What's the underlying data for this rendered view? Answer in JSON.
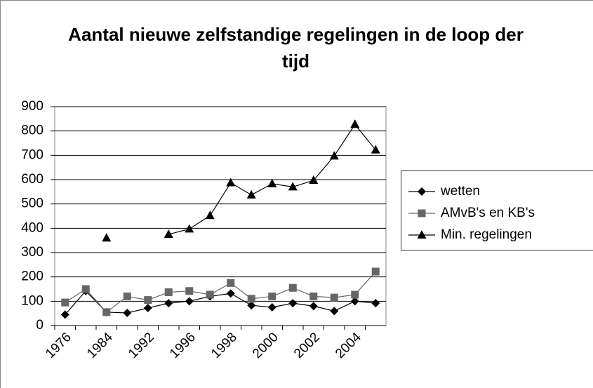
{
  "chart_data": {
    "type": "line",
    "title": "Aantal nieuwe zelfstandige regelingen in de loop der tijd",
    "categories": [
      "1976",
      null,
      "1984",
      null,
      "1992",
      null,
      "1996",
      null,
      "1998",
      null,
      "2000",
      null,
      "2002",
      null,
      "2004",
      null
    ],
    "series": [
      {
        "name": "wetten",
        "color": "#000000",
        "marker": "diamond",
        "values": [
          45,
          142,
          55,
          52,
          72,
          92,
          100,
          120,
          132,
          83,
          75,
          92,
          80,
          60,
          100,
          92
        ]
      },
      {
        "name": "AMvB's en KB's",
        "color": "#666666",
        "marker": "square",
        "values": [
          95,
          150,
          55,
          120,
          105,
          137,
          142,
          127,
          175,
          110,
          120,
          155,
          120,
          115,
          127,
          222
        ]
      },
      {
        "name": "Min. regelingen",
        "color": "#000000",
        "marker": "triangle",
        "values": [
          null,
          null,
          360,
          null,
          null,
          375,
          397,
          452,
          587,
          537,
          583,
          570,
          597,
          697,
          827,
          722
        ]
      }
    ],
    "ylim": [
      0,
      900
    ],
    "yticks": [
      0,
      100,
      200,
      300,
      400,
      500,
      600,
      700,
      800,
      900
    ],
    "grid": true,
    "legend": "right"
  }
}
